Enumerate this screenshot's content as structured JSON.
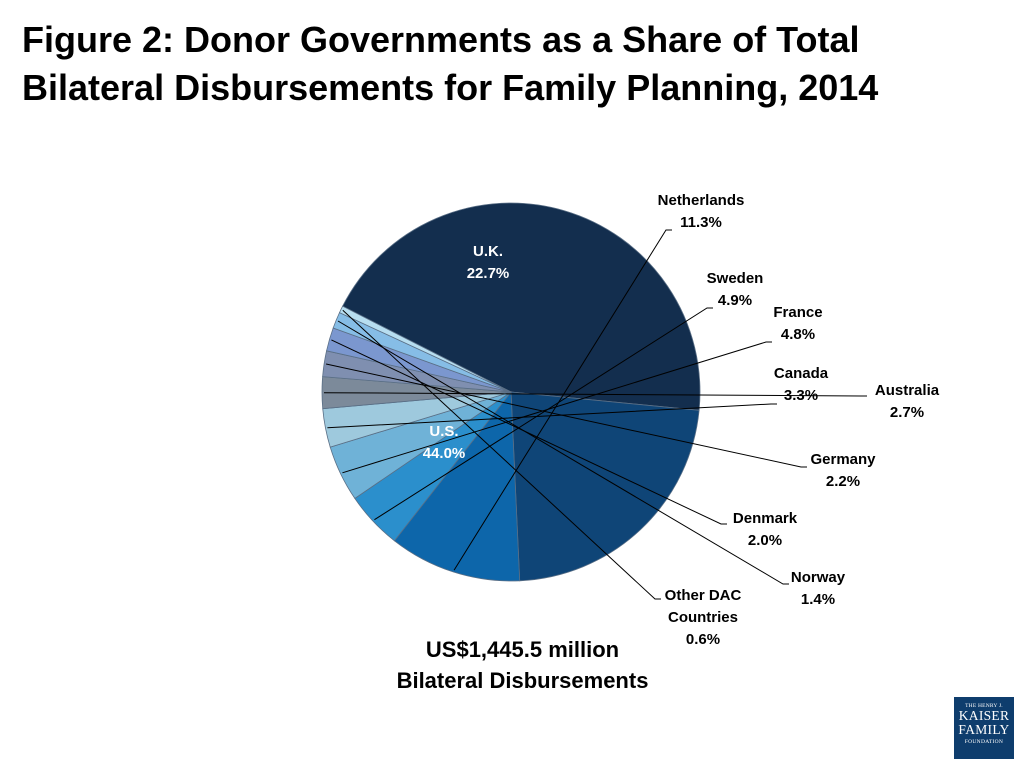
{
  "title": "Figure 2: Donor Governments as a Share of Total Bilateral Disbursements for Family Planning, 2014",
  "subtitle": {
    "line1": "US$1,445.5 million",
    "line2": "Bilateral Disbursements"
  },
  "logo": {
    "line1": "THE HENRY J.",
    "line2": "KAISER",
    "line3": "FAMILY",
    "line4": "FOUNDATION"
  },
  "chart_data": {
    "type": "pie",
    "unit": "%",
    "slices": [
      {
        "label": "U.S.",
        "value": 44.0,
        "display": "44.0%",
        "color": "#132e4e"
      },
      {
        "label": "U.K.",
        "value": 22.7,
        "display": "22.7%",
        "color": "#0f4577"
      },
      {
        "label": "Netherlands",
        "value": 11.3,
        "display": "11.3%",
        "color": "#0d66aa"
      },
      {
        "label": "Sweden",
        "value": 4.9,
        "display": "4.9%",
        "color": "#2b8fcc"
      },
      {
        "label": "France",
        "value": 4.8,
        "display": "4.8%",
        "color": "#6fb2d7"
      },
      {
        "label": "Canada",
        "value": 3.3,
        "display": "3.3%",
        "color": "#9ec9dd"
      },
      {
        "label": "Australia",
        "value": 2.7,
        "display": "2.7%",
        "color": "#7c8a9a"
      },
      {
        "label": "Germany",
        "value": 2.2,
        "display": "2.2%",
        "color": "#7f8fb0"
      },
      {
        "label": "Denmark",
        "value": 2.0,
        "display": "2.0%",
        "color": "#7b97cf"
      },
      {
        "label": "Norway",
        "value": 1.4,
        "display": "1.4%",
        "color": "#86bde6"
      },
      {
        "label": "Other DAC Countries",
        "label_lines": [
          "Other DAC",
          "Countries"
        ],
        "value": 0.6,
        "display": "0.6%",
        "color": "#b7def0"
      }
    ]
  }
}
